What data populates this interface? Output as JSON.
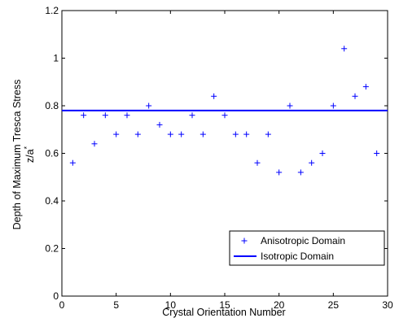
{
  "chart_data": {
    "type": "scatter",
    "xlabel": "Crystal Orientation Number",
    "ylabel_line1": "Depth of Maximum Tresca Stress",
    "ylabel_line2_main": "z/a",
    "ylabel_line2_sup": "*",
    "xlim": [
      0,
      30
    ],
    "ylim": [
      0,
      1.2
    ],
    "xticks": [
      0,
      5,
      10,
      15,
      20,
      25,
      30
    ],
    "yticks": [
      0,
      0.2,
      0.4,
      0.6,
      0.8,
      1,
      1.2
    ],
    "xtick_labels": [
      "0",
      "5",
      "10",
      "15",
      "20",
      "25",
      "30"
    ],
    "ytick_labels": [
      "0",
      "0.2",
      "0.4",
      "0.6",
      "0.8",
      "1",
      "1.2"
    ],
    "grid": false,
    "legend_placement": "bottom-right",
    "series": [
      {
        "name": "Anisotropic Domain",
        "marker": "+",
        "color": "#0000ff",
        "x": [
          1,
          2,
          3,
          4,
          5,
          6,
          7,
          8,
          9,
          10,
          11,
          12,
          13,
          14,
          15,
          16,
          17,
          18,
          19,
          20,
          21,
          22,
          23,
          24,
          25,
          26,
          27,
          28,
          29
        ],
        "y": [
          0.56,
          0.76,
          0.64,
          0.76,
          0.68,
          0.76,
          0.68,
          0.8,
          0.72,
          0.68,
          0.68,
          0.76,
          0.68,
          0.84,
          0.76,
          0.68,
          0.68,
          0.56,
          0.68,
          0.52,
          0.8,
          0.52,
          0.56,
          0.6,
          0.8,
          1.04,
          0.84,
          0.88,
          0.6
        ]
      },
      {
        "name": "Isotropic Domain",
        "marker": "line",
        "color": "#0000ff",
        "y_constant": 0.78
      }
    ]
  }
}
